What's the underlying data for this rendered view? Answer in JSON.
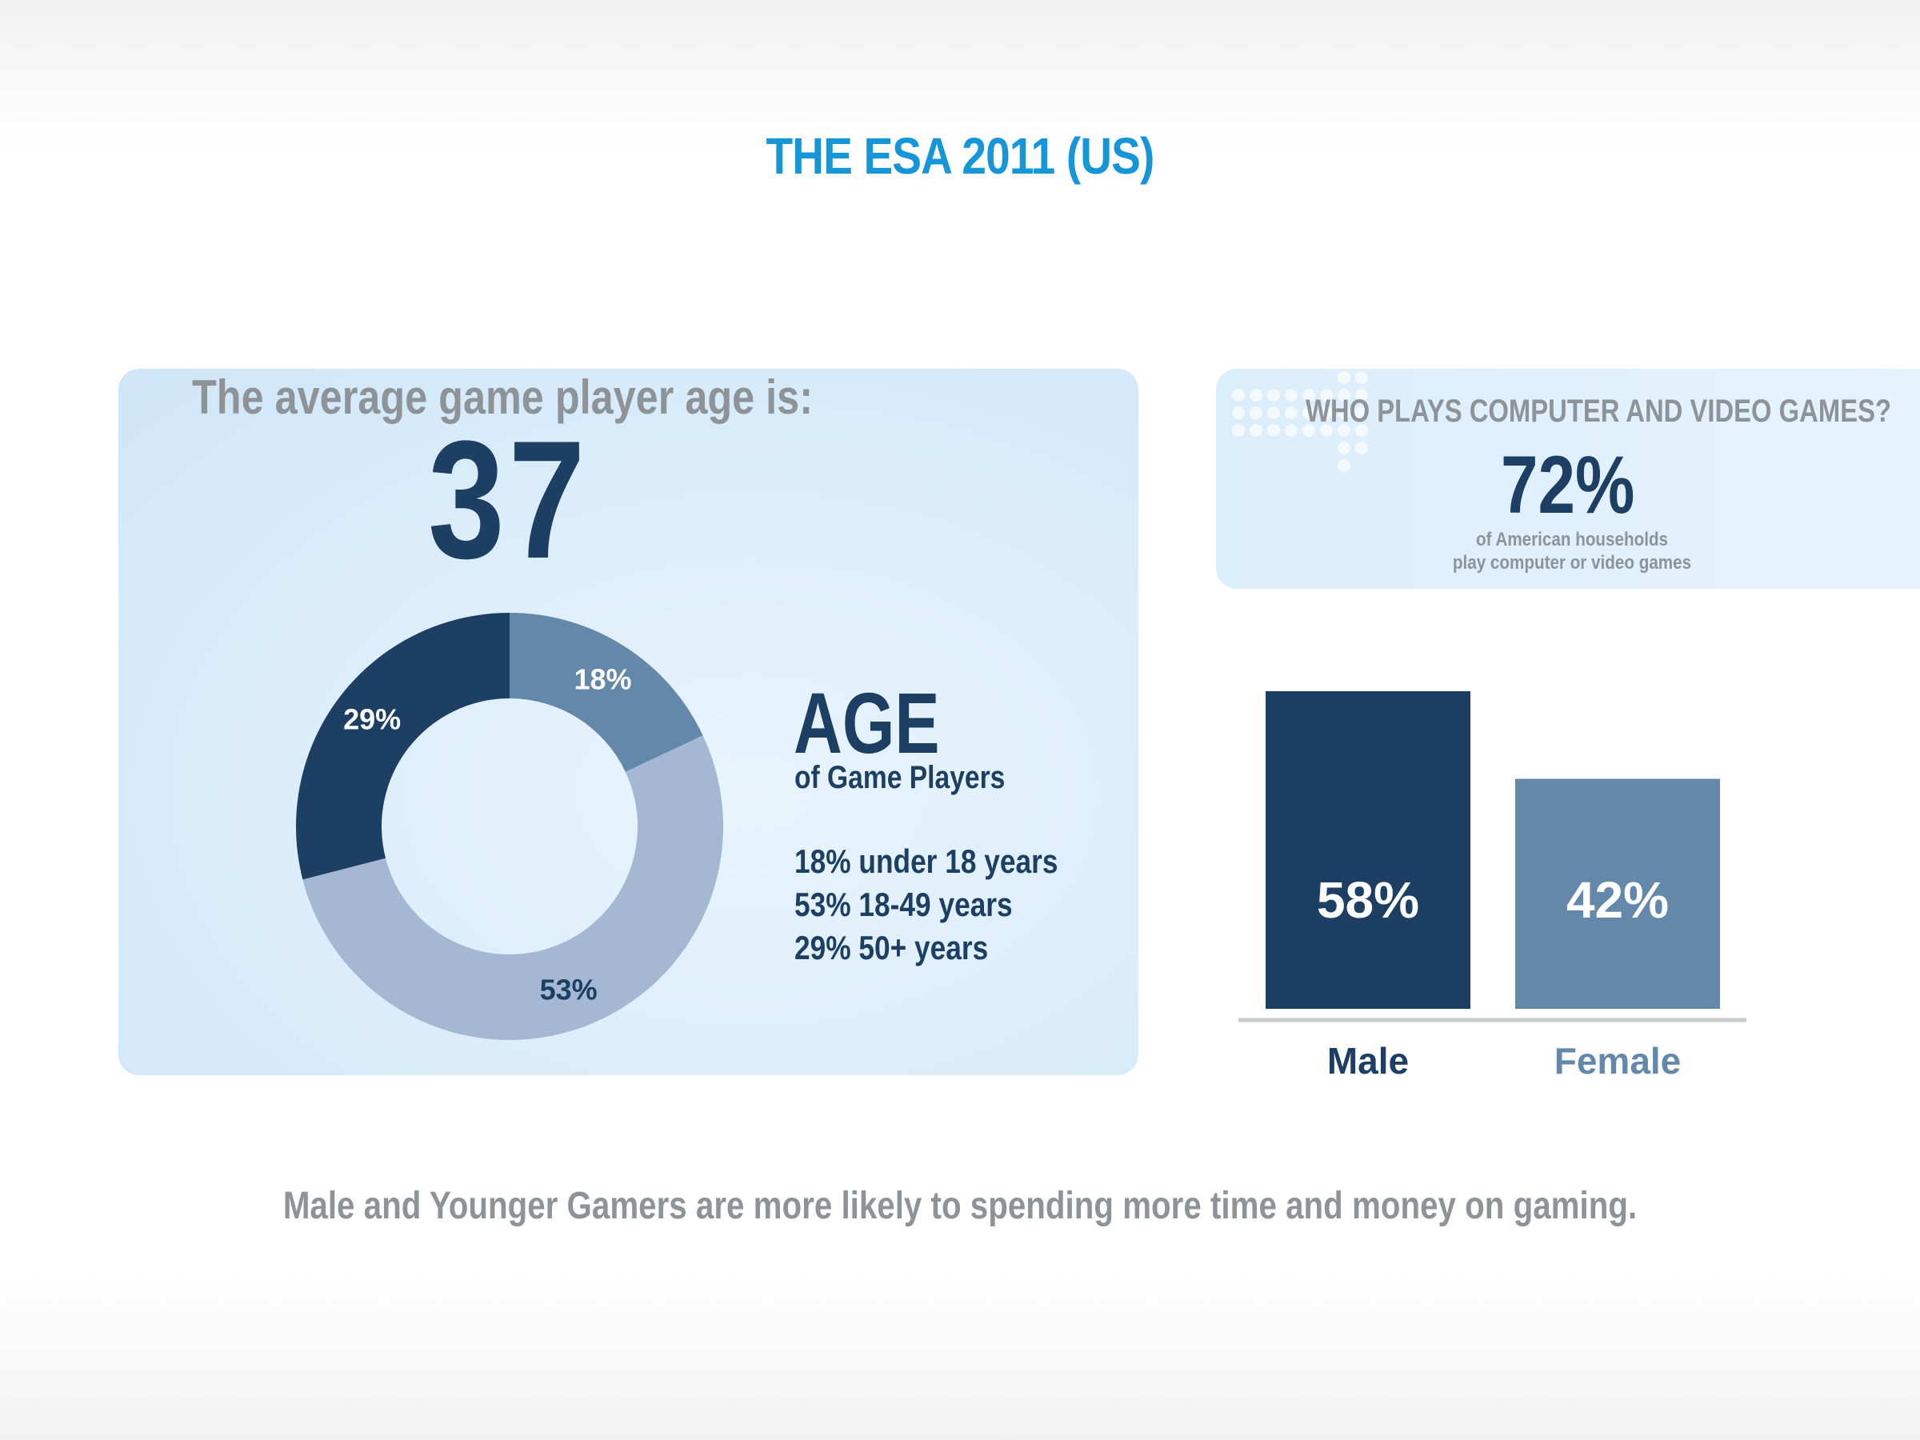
{
  "title": "THE ESA 2011 (US)",
  "average_age": {
    "heading": "The average game player age is:",
    "value": "37"
  },
  "age_section": {
    "title": "AGE",
    "subtitle": "of Game Players",
    "lines": [
      "18% under 18 years",
      "53% 18-49 years",
      "29% 50+ years"
    ]
  },
  "households": {
    "heading": "WHO PLAYS COMPUTER AND VIDEO GAMES?",
    "value": "72%",
    "caption_line1": "of American households",
    "caption_line2": "play computer or video games"
  },
  "footnote": "Male and Younger Gamers are more likely to spending more time and money on gaming.",
  "colors": {
    "dark_navy": "#1c3f63",
    "steel_blue": "#6388a9",
    "light_blue": "#a5b8d3",
    "title_blue": "#1596d8",
    "gray_text": "#8e9398"
  },
  "chart_data": [
    {
      "type": "pie",
      "subtype": "donut",
      "labels": [
        "18%",
        "53%",
        "29%"
      ],
      "values": [
        18,
        53,
        29
      ],
      "colors": [
        "#6388a9",
        "#a5b8d3",
        "#1c3f63"
      ],
      "label_colors": [
        "#ffffff",
        "#1c3f63",
        "#ffffff"
      ]
    },
    {
      "type": "bar",
      "categories": [
        "Male",
        "Female"
      ],
      "values": [
        58,
        42
      ],
      "value_labels": [
        "58%",
        "42%"
      ],
      "colors": [
        "#1c3f63",
        "#6388a9"
      ],
      "ylim": [
        0,
        58
      ]
    }
  ]
}
